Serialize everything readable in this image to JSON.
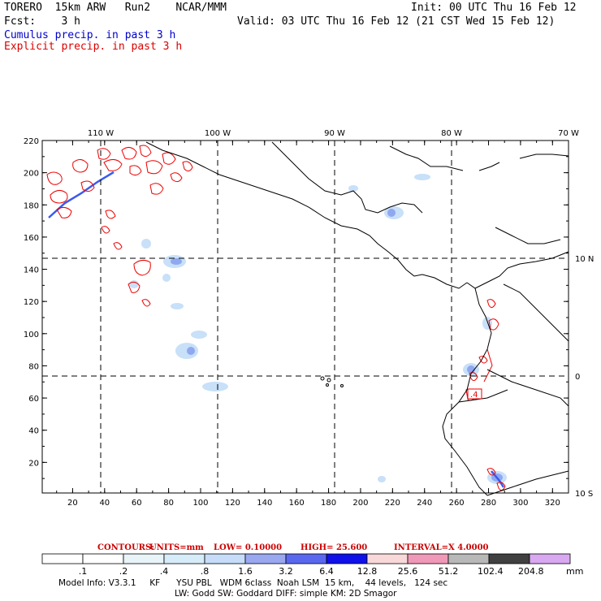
{
  "header": {
    "model": "TORERO",
    "resolution": "15km ARW",
    "run": "Run2",
    "org": "NCAR/MMM",
    "init": "Init: 00 UTC Thu 16 Feb 12",
    "fcst_label": "Fcst:",
    "fcst_value": "3 h",
    "valid": "Valid: 03 UTC Thu 16 Feb 12 (21 CST Wed 15 Feb 12)",
    "field1": "Cumulus precip. in past 3 h",
    "field2": "Explicit precip. in past 3 h"
  },
  "map": {
    "lon_labels": [
      "110 W",
      "100 W",
      "90 W",
      "80 W",
      "70 W"
    ],
    "lat_labels": [
      "10 N",
      "0",
      "10 S"
    ],
    "x_ticks": [
      "20",
      "40",
      "60",
      "80",
      "100",
      "120",
      "140",
      "160",
      "180",
      "200",
      "220",
      "240",
      "260",
      "280",
      "300",
      "320"
    ],
    "y_ticks": [
      "20",
      "40",
      "60",
      "80",
      "100",
      "120",
      "140",
      "160",
      "180",
      "200",
      "220"
    ],
    "max_label": ".4",
    "colors": {
      "cumulus_light": "#c8e0f8",
      "cumulus_mid": "#8fa8f0",
      "cumulus_dark": "#3a5af0",
      "explicit": "#ee0000",
      "grid": "#000000"
    }
  },
  "contours": {
    "title": "CONTOURS:",
    "units": "UNITS=mm",
    "low": "LOW= 0.10000",
    "high": "HIGH= 25.600",
    "interval": "INTERVAL=X 4.0000"
  },
  "legend": {
    "values": [
      ".1",
      ".2",
      ".4",
      ".8",
      "1.6",
      "3.2",
      "6.4",
      "12.8",
      "25.6",
      "51.2",
      "102.4",
      "204.8"
    ],
    "colors": [
      "#ffffff",
      "#ffffff",
      "#e8f4f8",
      "#d6ecf8",
      "#c6dcf8",
      "#9aa8f0",
      "#5a68f0",
      "#1010e8",
      "#f8d8d8",
      "#f098b8",
      "#b8b8b8",
      "#404040",
      "#d8a8f0"
    ],
    "unit": "mm"
  },
  "footer": {
    "line1": "Model Info: V3.3.1     KF      YSU PBL   WDM 6class  Noah LSM  15 km,    44 levels,   124 sec",
    "line2": "LW: Godd SW: Goddard DIFF: simple KM: 2D Smagor"
  }
}
